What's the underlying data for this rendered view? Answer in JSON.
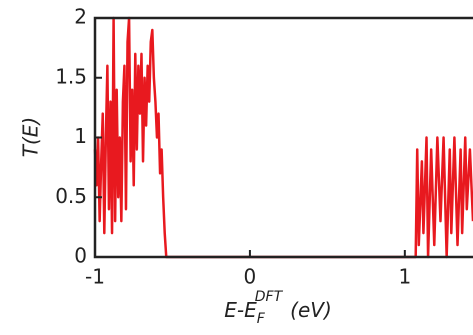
{
  "chart_data": {
    "type": "line",
    "y_label": "T(E)",
    "x_label": {
      "base": "E-E",
      "sub": "F",
      "sup": "DFT",
      "unit": "(eV)"
    },
    "xlim": [
      -1,
      1.44
    ],
    "xticks": [
      -1,
      0,
      1
    ],
    "ylim": [
      0,
      2
    ],
    "yticks": [
      0,
      0.5,
      1,
      1.5,
      2
    ],
    "color": "#e8191f",
    "x": [
      -1.0,
      -0.99,
      -0.98,
      -0.97,
      -0.96,
      -0.95,
      -0.94,
      -0.93,
      -0.92,
      -0.91,
      -0.9,
      -0.89,
      -0.88,
      -0.87,
      -0.86,
      -0.85,
      -0.84,
      -0.83,
      -0.82,
      -0.81,
      -0.8,
      -0.79,
      -0.78,
      -0.77,
      -0.76,
      -0.75,
      -0.74,
      -0.73,
      -0.72,
      -0.71,
      -0.7,
      -0.69,
      -0.68,
      -0.67,
      -0.66,
      -0.65,
      -0.64,
      -0.63,
      -0.62,
      -0.61,
      -0.6,
      -0.59,
      -0.58,
      -0.57,
      -0.56,
      -0.55,
      -0.54,
      1.07,
      1.08,
      1.09,
      1.11,
      1.12,
      1.14,
      1.15,
      1.17,
      1.19,
      1.21,
      1.23,
      1.25,
      1.27,
      1.29,
      1.3,
      1.32,
      1.34,
      1.36,
      1.37,
      1.39,
      1.4,
      1.42,
      1.44
    ],
    "values": [
      0.9,
      0.6,
      1.0,
      0.3,
      0.8,
      1.2,
      0.2,
      1.0,
      1.6,
      0.4,
      1.3,
      0.2,
      2.0,
      0.3,
      1.4,
      0.5,
      1.0,
      0.3,
      1.3,
      1.6,
      0.4,
      1.8,
      2.0,
      0.8,
      1.4,
      0.6,
      1.7,
      0.9,
      1.6,
      1.2,
      1.7,
      0.8,
      1.5,
      1.1,
      1.6,
      1.3,
      1.8,
      1.9,
      1.5,
      1.3,
      1.0,
      1.2,
      0.7,
      0.9,
      0.5,
      0.2,
      0,
      0,
      0.9,
      0.1,
      0.8,
      0.2,
      1.0,
      0,
      0.9,
      0.1,
      1.0,
      0.3,
      1.0,
      0,
      0.9,
      0.2,
      1.0,
      0.1,
      0.9,
      0.2,
      1.0,
      0.4,
      0.9,
      0.3
    ]
  }
}
